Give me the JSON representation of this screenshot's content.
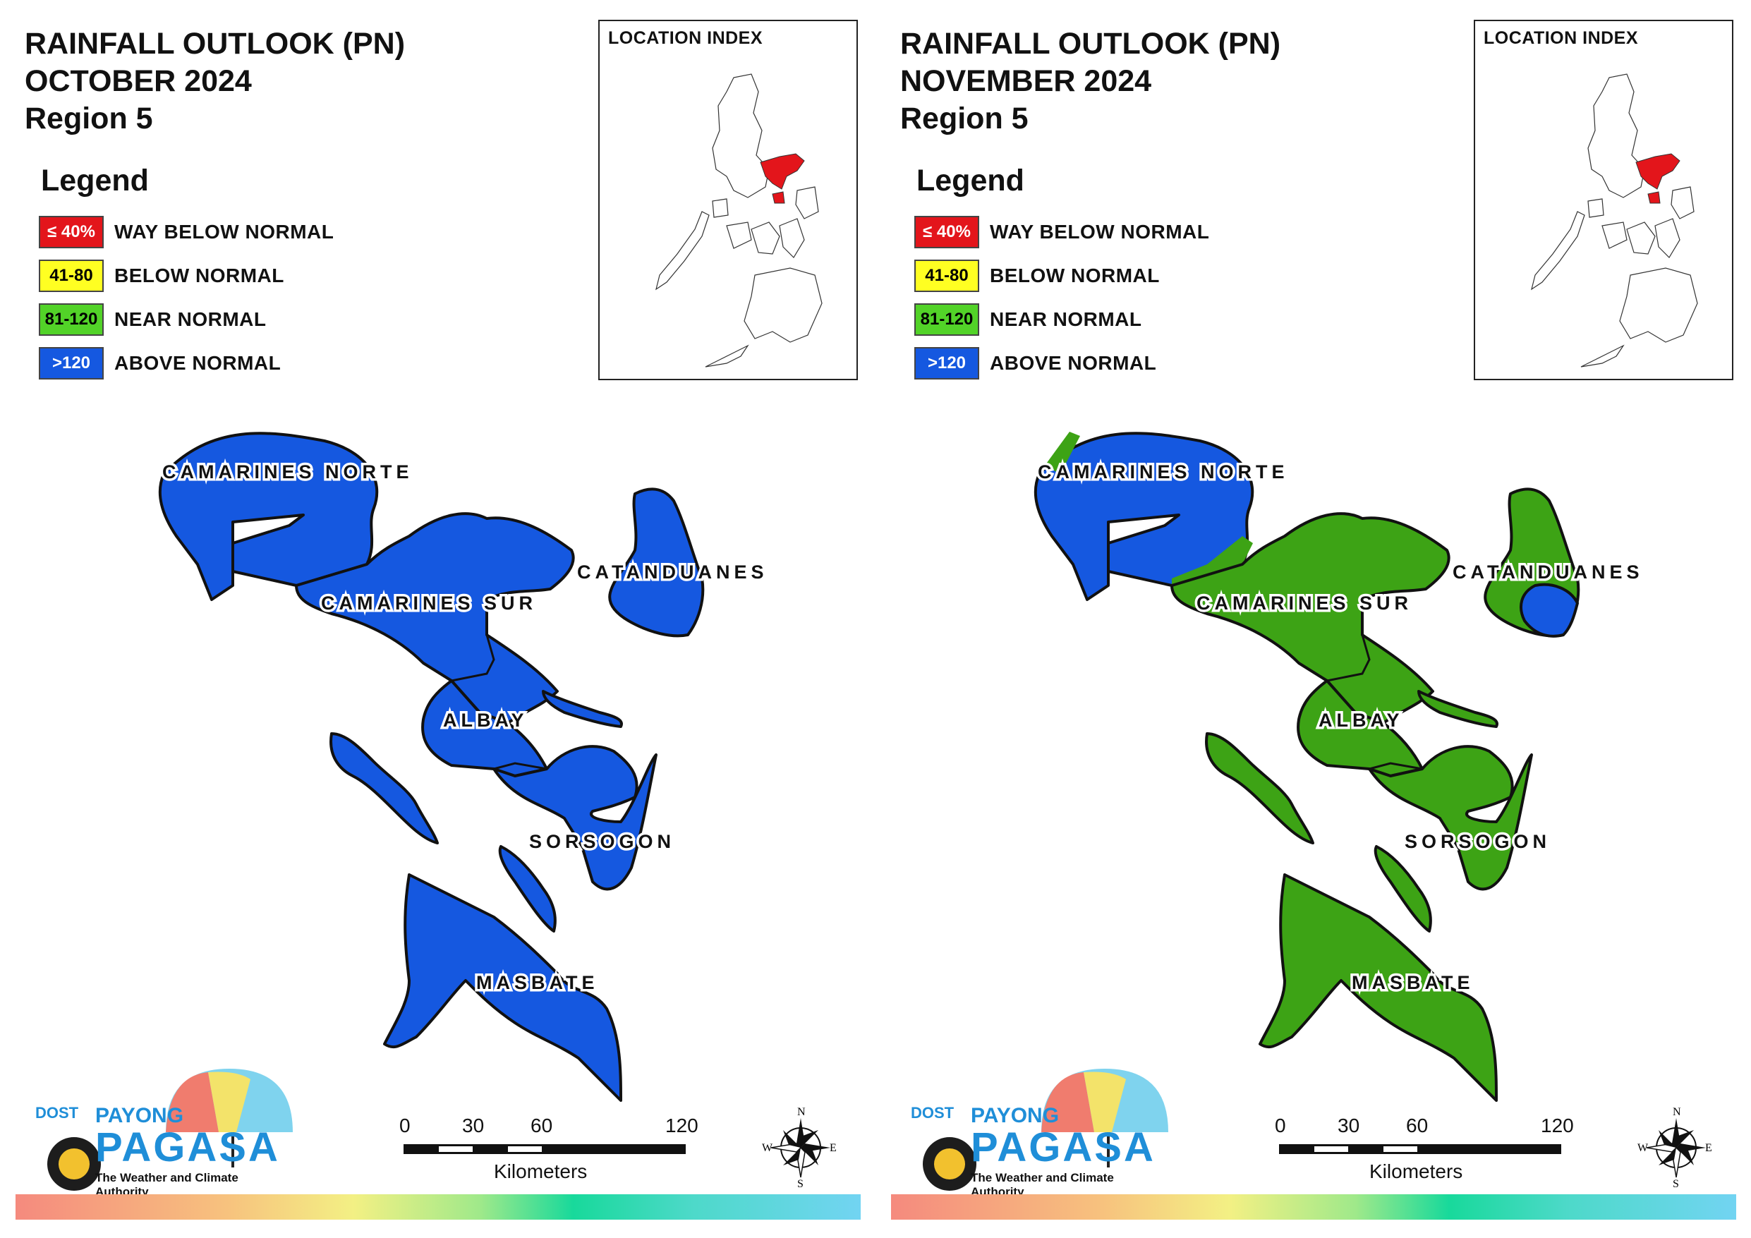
{
  "colors": {
    "way_below": "#e3151b",
    "below": "#ffff22",
    "near": "#3da315",
    "above": "#1558e0",
    "legend_near": "#52d328"
  },
  "legend": {
    "title": "Legend",
    "items": [
      {
        "range": "≤ 40%",
        "label": "WAY BELOW NORMAL",
        "color": "#e3151b",
        "text_color": "#ffffff"
      },
      {
        "range": "41-80",
        "label": "BELOW NORMAL",
        "color": "#ffff22",
        "text_color": "#000000"
      },
      {
        "range": "81-120",
        "label": "NEAR NORMAL",
        "color": "#52d328",
        "text_color": "#000000"
      },
      {
        "range": ">120",
        "label": "ABOVE NORMAL",
        "color": "#1558e0",
        "text_color": "#ffffff"
      }
    ]
  },
  "inset": {
    "title": "LOCATION INDEX"
  },
  "provinces": {
    "camarines_norte": "CAMARINES NORTE",
    "camarines_sur": "CAMARINES SUR",
    "catanduanes": "CATANDUANES",
    "albay": "ALBAY",
    "sorsogon": "SORSOGON",
    "masbate": "MASBATE"
  },
  "scale_bar": {
    "ticks": [
      "0",
      "30",
      "60",
      "120"
    ],
    "unit": "Kilometers"
  },
  "compass": {
    "n": "N",
    "s": "S",
    "e": "E",
    "w": "W"
  },
  "logo": {
    "dost": "DOST",
    "payong": "PAYONG",
    "pagasa": "PAGASA",
    "tagline": "The Weather and Climate Authority"
  },
  "panels": [
    {
      "title": {
        "line1": "RAINFALL OUTLOOK (PN)",
        "line2": "OCTOBER 2024",
        "line3": "Region 5"
      },
      "province_category": {
        "camarines_norte": "ABOVE NORMAL",
        "camarines_sur": "ABOVE NORMAL",
        "catanduanes": "ABOVE NORMAL",
        "albay": "ABOVE NORMAL",
        "sorsogon": "ABOVE NORMAL",
        "masbate": "ABOVE NORMAL"
      }
    },
    {
      "title": {
        "line1": "RAINFALL OUTLOOK (PN)",
        "line2": "NOVEMBER 2024",
        "line3": "Region 5"
      },
      "province_category": {
        "camarines_norte": "ABOVE NORMAL / NEAR NORMAL",
        "camarines_sur": "NEAR NORMAL",
        "catanduanes": "NEAR NORMAL / ABOVE NORMAL",
        "albay": "NEAR NORMAL",
        "sorsogon": "NEAR NORMAL",
        "masbate": "NEAR NORMAL"
      }
    }
  ]
}
